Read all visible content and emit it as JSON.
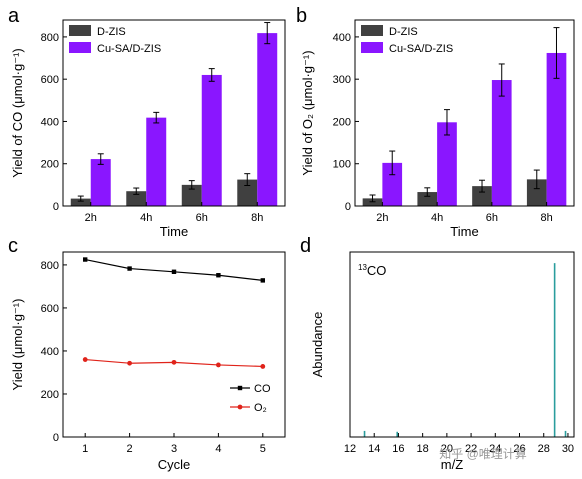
{
  "colors": {
    "dzis": "#404040",
    "cusa": "#8a16ff",
    "co_line": "#000000",
    "o2_line": "#e0231a",
    "ms_peak": "#2a9d9d"
  },
  "watermark": "知乎 @唯理计算",
  "chart_data": [
    {
      "panel": "a",
      "type": "bar",
      "categories": [
        "2h",
        "4h",
        "6h",
        "8h"
      ],
      "series": [
        {
          "name": "D-ZIS",
          "values": [
            35,
            70,
            100,
            125
          ],
          "errors": [
            12,
            15,
            20,
            28
          ]
        },
        {
          "name": "Cu-SA/D-ZIS",
          "values": [
            222,
            418,
            620,
            818
          ],
          "errors": [
            25,
            25,
            30,
            50
          ]
        }
      ],
      "xlabel": "Time",
      "ylabel": "Yield of CO (μmol·g⁻¹)",
      "ylim": [
        0,
        880
      ],
      "yticks": [
        0,
        200,
        400,
        600,
        800
      ],
      "legend": "top-left"
    },
    {
      "panel": "b",
      "type": "bar",
      "categories": [
        "2h",
        "4h",
        "6h",
        "8h"
      ],
      "series": [
        {
          "name": "D-ZIS",
          "values": [
            18,
            33,
            47,
            63
          ],
          "errors": [
            8,
            10,
            14,
            22
          ]
        },
        {
          "name": "Cu-SA/D-ZIS",
          "values": [
            102,
            198,
            298,
            362
          ],
          "errors": [
            28,
            30,
            38,
            60
          ]
        }
      ],
      "xlabel": "Time",
      "ylabel": "Yield of O₂ (μmol·g⁻¹)",
      "ylim": [
        0,
        440
      ],
      "yticks": [
        0,
        100,
        200,
        300,
        400
      ],
      "legend": "top-left"
    },
    {
      "panel": "c",
      "type": "line",
      "x": [
        1,
        2,
        3,
        4,
        5
      ],
      "series": [
        {
          "name": "CO",
          "values": [
            825,
            783,
            768,
            752,
            728
          ]
        },
        {
          "name": "O₂",
          "values": [
            360,
            343,
            347,
            335,
            328
          ]
        }
      ],
      "xlabel": "Cycle",
      "ylabel": "Yield (μmol·g⁻¹)",
      "xlim": [
        0.5,
        5.5
      ],
      "ylim": [
        0,
        860
      ],
      "xticks": [
        1,
        2,
        3,
        4,
        5
      ],
      "yticks": [
        0,
        200,
        400,
        600,
        800
      ],
      "legend": "bottom-right"
    },
    {
      "panel": "d",
      "type": "bar",
      "x": [
        13.2,
        15.9,
        28.9,
        29.8
      ],
      "values": [
        0.035,
        0.03,
        1.0,
        0.035
      ],
      "xlabel": "m/Z",
      "ylabel": "Abundance",
      "annotation": "13CO",
      "xlim": [
        12,
        30.5
      ],
      "xticks": [
        12,
        14,
        16,
        18,
        20,
        22,
        24,
        26,
        28,
        30
      ]
    }
  ]
}
